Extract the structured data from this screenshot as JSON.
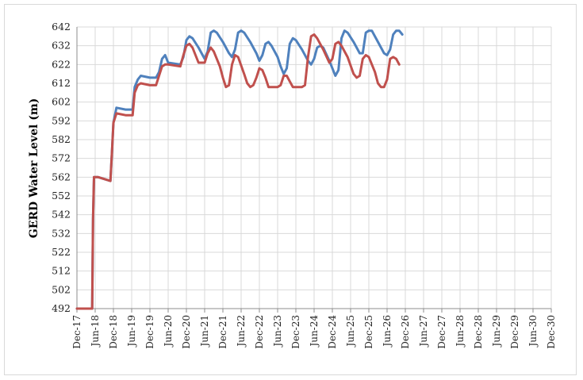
{
  "chart_data": {
    "type": "line",
    "title": "",
    "xlabel": "",
    "ylabel": "GERD Water Level (m)",
    "ylim": [
      492,
      642
    ],
    "y_ticks": [
      492,
      502,
      512,
      522,
      532,
      542,
      552,
      562,
      572,
      582,
      592,
      602,
      612,
      622,
      632,
      642
    ],
    "x_tick_labels": [
      "Dec-17",
      "Jun-18",
      "Dec-18",
      "Jun-19",
      "Dec-19",
      "Jun-20",
      "Dec-20",
      "Jun-21",
      "Dec-21",
      "Jun-22",
      "Dec-22",
      "Jun-23",
      "Dec-23",
      "Jun-24",
      "Dec-24",
      "Jun-25",
      "Dec-25",
      "Jun-26",
      "Dec-26",
      "Jun-27",
      "Dec-27",
      "Jun-28",
      "Dec-28",
      "Jun-29",
      "Dec-29",
      "Jun-30",
      "Dec-30"
    ],
    "x_unit": "months since Dec-17",
    "grid": true,
    "legend": "none",
    "series": [
      {
        "color": "#4f81bd",
        "points": [
          [
            0,
            492
          ],
          [
            1,
            492
          ],
          [
            2,
            492
          ],
          [
            3,
            492
          ],
          [
            4,
            492
          ],
          [
            5,
            492
          ],
          [
            5.3,
            540
          ],
          [
            5.6,
            562
          ],
          [
            7,
            562
          ],
          [
            9,
            561
          ],
          [
            11,
            560
          ],
          [
            11.5,
            575
          ],
          [
            12,
            591
          ],
          [
            13,
            599
          ],
          [
            16,
            598
          ],
          [
            18.3,
            598
          ],
          [
            19,
            610
          ],
          [
            20,
            614
          ],
          [
            21,
            616
          ],
          [
            24,
            615
          ],
          [
            26,
            615
          ],
          [
            27,
            618
          ],
          [
            28,
            625
          ],
          [
            29,
            627
          ],
          [
            30,
            623
          ],
          [
            34,
            622
          ],
          [
            35,
            626
          ],
          [
            36,
            635
          ],
          [
            37,
            637
          ],
          [
            38,
            636
          ],
          [
            40,
            631
          ],
          [
            42,
            625
          ],
          [
            43,
            629
          ],
          [
            44,
            639
          ],
          [
            45,
            640
          ],
          [
            46,
            639
          ],
          [
            48,
            634
          ],
          [
            50,
            628
          ],
          [
            51,
            626
          ],
          [
            52,
            630
          ],
          [
            53,
            639
          ],
          [
            54,
            640
          ],
          [
            55,
            639
          ],
          [
            57,
            634
          ],
          [
            59,
            628
          ],
          [
            60,
            624
          ],
          [
            61,
            627
          ],
          [
            62,
            633
          ],
          [
            63,
            634
          ],
          [
            64,
            632
          ],
          [
            66,
            626
          ],
          [
            67,
            621
          ],
          [
            68,
            617
          ],
          [
            69,
            620
          ],
          [
            70,
            633
          ],
          [
            71,
            636
          ],
          [
            72,
            635
          ],
          [
            74,
            630
          ],
          [
            76,
            624
          ],
          [
            77,
            622
          ],
          [
            78,
            625
          ],
          [
            79,
            631
          ],
          [
            80,
            632
          ],
          [
            81,
            631
          ],
          [
            83,
            624
          ],
          [
            85,
            616
          ],
          [
            86,
            619
          ],
          [
            87,
            636
          ],
          [
            88,
            640
          ],
          [
            89,
            639
          ],
          [
            91,
            634
          ],
          [
            93,
            628
          ],
          [
            94,
            628
          ],
          [
            95,
            639
          ],
          [
            96,
            640
          ],
          [
            97,
            640
          ],
          [
            99,
            634
          ],
          [
            101,
            628
          ],
          [
            102,
            627
          ],
          [
            103,
            630
          ],
          [
            104,
            638
          ],
          [
            105,
            640
          ],
          [
            106,
            640
          ],
          [
            107,
            638
          ]
        ]
      },
      {
        "color": "#c0504d",
        "points": [
          [
            0,
            492
          ],
          [
            1,
            492
          ],
          [
            2,
            492
          ],
          [
            3,
            492
          ],
          [
            4,
            492
          ],
          [
            5,
            492
          ],
          [
            5.3,
            540
          ],
          [
            5.6,
            562
          ],
          [
            7,
            562
          ],
          [
            9,
            561
          ],
          [
            11,
            560
          ],
          [
            11.5,
            575
          ],
          [
            12,
            591
          ],
          [
            13,
            596
          ],
          [
            16,
            595
          ],
          [
            18.3,
            595
          ],
          [
            19,
            607
          ],
          [
            20,
            611
          ],
          [
            21,
            612
          ],
          [
            24,
            611
          ],
          [
            26,
            611
          ],
          [
            27,
            616
          ],
          [
            28,
            621
          ],
          [
            29,
            622
          ],
          [
            30,
            622
          ],
          [
            34,
            621
          ],
          [
            35,
            627
          ],
          [
            36,
            632
          ],
          [
            37,
            633
          ],
          [
            38,
            631
          ],
          [
            40,
            623
          ],
          [
            42,
            623
          ],
          [
            43,
            628
          ],
          [
            44,
            631
          ],
          [
            45,
            629
          ],
          [
            47,
            621
          ],
          [
            48,
            615
          ],
          [
            49,
            610
          ],
          [
            50,
            611
          ],
          [
            51,
            622
          ],
          [
            52,
            627
          ],
          [
            53,
            626
          ],
          [
            55,
            617
          ],
          [
            56,
            612
          ],
          [
            57,
            610
          ],
          [
            58,
            611
          ],
          [
            59,
            615
          ],
          [
            60,
            620
          ],
          [
            61,
            619
          ],
          [
            62,
            615
          ],
          [
            63,
            610
          ],
          [
            66,
            610
          ],
          [
            67,
            611
          ],
          [
            68,
            616
          ],
          [
            69,
            616
          ],
          [
            70,
            613
          ],
          [
            71,
            610
          ],
          [
            74,
            610
          ],
          [
            75,
            611
          ],
          [
            76,
            626
          ],
          [
            77,
            637
          ],
          [
            78,
            638
          ],
          [
            79,
            636
          ],
          [
            81,
            630
          ],
          [
            83,
            623
          ],
          [
            84,
            625
          ],
          [
            85,
            633
          ],
          [
            86,
            634
          ],
          [
            87,
            632
          ],
          [
            89,
            626
          ],
          [
            91,
            617
          ],
          [
            92,
            615
          ],
          [
            93,
            616
          ],
          [
            94,
            625
          ],
          [
            95,
            627
          ],
          [
            96,
            626
          ],
          [
            98,
            618
          ],
          [
            99,
            612
          ],
          [
            100,
            610
          ],
          [
            101,
            610
          ],
          [
            102,
            614
          ],
          [
            103,
            625
          ],
          [
            104,
            626
          ],
          [
            105,
            625
          ],
          [
            106,
            622
          ]
        ]
      }
    ]
  }
}
